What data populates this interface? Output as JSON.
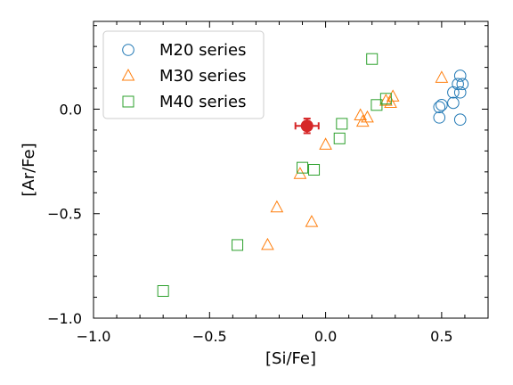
{
  "chart_data": {
    "type": "scatter",
    "title": "",
    "xlabel": "[Si/Fe]",
    "ylabel": "[Ar/Fe]",
    "xlim": [
      -1.0,
      0.7
    ],
    "ylim": [
      -1.0,
      0.42
    ],
    "xticks": [
      -1.0,
      -0.5,
      0.0,
      0.5
    ],
    "xtick_labels": [
      "−1.0",
      "−0.5",
      "0.0",
      "0.5"
    ],
    "yticks": [
      -1.0,
      -0.5,
      0.0
    ],
    "ytick_labels": [
      "−1.0",
      "−0.5",
      "0.0"
    ],
    "grid": false,
    "legend": {
      "position": "top-left"
    },
    "series": [
      {
        "name": "M20 series",
        "marker": "circle-open",
        "color": "#1f77b4",
        "points": [
          {
            "x": 0.58,
            "y": 0.16
          },
          {
            "x": 0.59,
            "y": 0.12
          },
          {
            "x": 0.57,
            "y": 0.12
          },
          {
            "x": 0.58,
            "y": 0.08
          },
          {
            "x": 0.55,
            "y": 0.08
          },
          {
            "x": 0.55,
            "y": 0.03
          },
          {
            "x": 0.5,
            "y": 0.02
          },
          {
            "x": 0.49,
            "y": 0.01
          },
          {
            "x": 0.49,
            "y": -0.04
          },
          {
            "x": 0.58,
            "y": -0.05
          }
        ]
      },
      {
        "name": "M30 series",
        "marker": "triangle-open",
        "color": "#ff7f0e",
        "points": [
          {
            "x": 0.5,
            "y": 0.15
          },
          {
            "x": 0.29,
            "y": 0.06
          },
          {
            "x": 0.26,
            "y": 0.04
          },
          {
            "x": 0.28,
            "y": 0.03
          },
          {
            "x": 0.15,
            "y": -0.03
          },
          {
            "x": 0.18,
            "y": -0.04
          },
          {
            "x": 0.16,
            "y": -0.06
          },
          {
            "x": 0.0,
            "y": -0.17
          },
          {
            "x": -0.11,
            "y": -0.31
          },
          {
            "x": -0.21,
            "y": -0.47
          },
          {
            "x": -0.06,
            "y": -0.54
          },
          {
            "x": -0.25,
            "y": -0.65
          }
        ]
      },
      {
        "name": "M40 series",
        "marker": "square-open",
        "color": "#2ca02c",
        "points": [
          {
            "x": 0.2,
            "y": 0.24
          },
          {
            "x": 0.26,
            "y": 0.05
          },
          {
            "x": 0.22,
            "y": 0.02
          },
          {
            "x": 0.07,
            "y": -0.07
          },
          {
            "x": 0.06,
            "y": -0.14
          },
          {
            "x": -0.1,
            "y": -0.28
          },
          {
            "x": -0.05,
            "y": -0.29
          },
          {
            "x": -0.38,
            "y": -0.65
          },
          {
            "x": -0.7,
            "y": -0.87
          }
        ]
      }
    ],
    "reference_point": {
      "x": -0.08,
      "y": -0.08,
      "x_err": 0.05,
      "y_err": 0.035,
      "color": "#d62728"
    }
  }
}
